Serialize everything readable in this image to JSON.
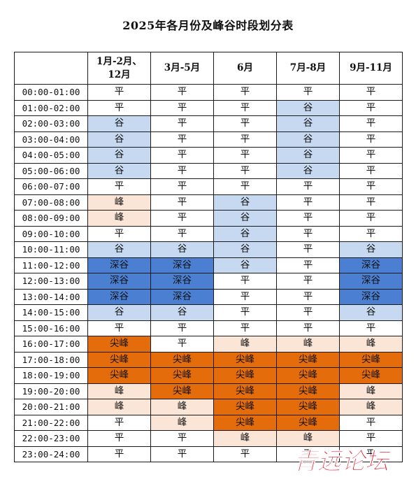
{
  "title": "2025年各月份及峰谷时段划分表",
  "header": {
    "time_col": "",
    "columns": [
      {
        "line1": "1月-2月、",
        "line2": "12月"
      },
      {
        "line1": "3月-5月",
        "line2": ""
      },
      {
        "line1": "6月",
        "line2": ""
      },
      {
        "line1": "7月-8月",
        "line2": ""
      },
      {
        "line1": "9月-11月",
        "line2": ""
      }
    ]
  },
  "period_colors": {
    "平": "#ffffff",
    "谷": "#c6d9f0",
    "深谷": "#4a7fd1",
    "峰": "#fbe5d6",
    "尖峰": "#e46c0a"
  },
  "rows": [
    {
      "time": "00:00-01:00",
      "cells": [
        "平",
        "平",
        "平",
        "平",
        "平"
      ]
    },
    {
      "time": "01:00-02:00",
      "cells": [
        "平",
        "平",
        "平",
        "谷",
        "平"
      ]
    },
    {
      "time": "02:00-03:00",
      "cells": [
        "谷",
        "平",
        "平",
        "谷",
        "平"
      ]
    },
    {
      "time": "03:00-04:00",
      "cells": [
        "谷",
        "平",
        "平",
        "谷",
        "平"
      ]
    },
    {
      "time": "04:00-05:00",
      "cells": [
        "谷",
        "平",
        "平",
        "谷",
        "平"
      ]
    },
    {
      "time": "05:00-06:00",
      "cells": [
        "谷",
        "平",
        "平",
        "谷",
        "平"
      ]
    },
    {
      "time": "06:00-07:00",
      "cells": [
        "平",
        "平",
        "平",
        "平",
        "平"
      ]
    },
    {
      "time": "07:00-08:00",
      "cells": [
        "峰",
        "平",
        "谷",
        "平",
        "平"
      ]
    },
    {
      "time": "08:00-09:00",
      "cells": [
        "峰",
        "平",
        "谷",
        "平",
        "平"
      ]
    },
    {
      "time": "09:00-10:00",
      "cells": [
        "平",
        "平",
        "谷",
        "平",
        "平"
      ]
    },
    {
      "time": "10:00-11:00",
      "cells": [
        "谷",
        "谷",
        "谷",
        "平",
        "谷"
      ]
    },
    {
      "time": "11:00-12:00",
      "cells": [
        "深谷",
        "深谷",
        "谷",
        "平",
        "深谷"
      ]
    },
    {
      "time": "12:00-13:00",
      "cells": [
        "深谷",
        "深谷",
        "平",
        "平",
        "深谷"
      ]
    },
    {
      "time": "13:00-14:00",
      "cells": [
        "深谷",
        "深谷",
        "平",
        "平",
        "深谷"
      ]
    },
    {
      "time": "14:00-15:00",
      "cells": [
        "谷",
        "谷",
        "平",
        "平",
        "谷"
      ]
    },
    {
      "time": "15:00-16:00",
      "cells": [
        "平",
        "平",
        "平",
        "平",
        "平"
      ]
    },
    {
      "time": "16:00-17:00",
      "cells": [
        "尖峰",
        "平",
        "峰",
        "峰",
        "峰"
      ]
    },
    {
      "time": "17:00-18:00",
      "cells": [
        "尖峰",
        "尖峰",
        "尖峰",
        "尖峰",
        "尖峰"
      ]
    },
    {
      "time": "18:00-19:00",
      "cells": [
        "尖峰",
        "尖峰",
        "尖峰",
        "尖峰",
        "尖峰"
      ]
    },
    {
      "time": "19:00-20:00",
      "cells": [
        "峰",
        "尖峰",
        "尖峰",
        "尖峰",
        "峰"
      ]
    },
    {
      "time": "20:00-21:00",
      "cells": [
        "峰",
        "峰",
        "尖峰",
        "尖峰",
        "峰"
      ]
    },
    {
      "time": "21:00-22:00",
      "cells": [
        "平",
        "峰",
        "尖峰",
        "尖峰",
        "平"
      ]
    },
    {
      "time": "22:00-23:00",
      "cells": [
        "平",
        "平",
        "峰",
        "峰",
        "平"
      ]
    },
    {
      "time": "23:00-24:00",
      "cells": [
        "平",
        "平",
        "平",
        "平",
        "平"
      ]
    }
  ],
  "watermark": {
    "text": "青远论坛",
    "color": "#e8162b"
  }
}
